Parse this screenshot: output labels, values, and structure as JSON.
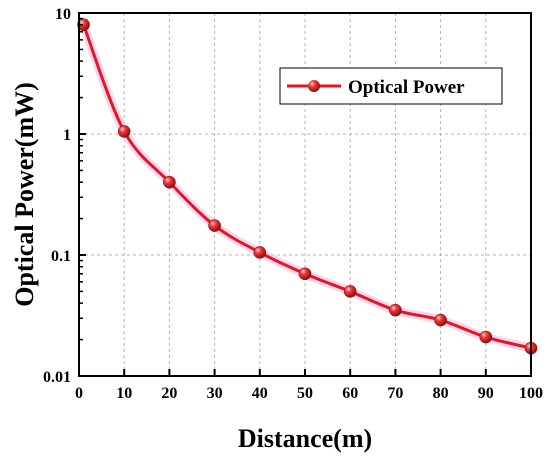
{
  "chart_data": {
    "type": "line",
    "xlabel": "Distance(m)",
    "ylabel": "Optical Power(mW)",
    "xlim": [
      0,
      100
    ],
    "ylim": [
      0.01,
      10
    ],
    "yscale": "log",
    "grid": true,
    "legend_position": "top-right",
    "x_ticks": [
      0,
      10,
      20,
      30,
      40,
      50,
      60,
      70,
      80,
      90,
      100
    ],
    "x_tick_labels": [
      "0",
      "10",
      "20",
      "30",
      "40",
      "50",
      "60",
      "70",
      "80",
      "90",
      "100"
    ],
    "y_ticks": [
      0.01,
      0.1,
      1,
      10
    ],
    "y_tick_labels": [
      "0.01",
      "0.1",
      "1",
      "10"
    ],
    "series": [
      {
        "name": "Optical Power",
        "color": "#e8161b",
        "marker_color": "#d8141a",
        "x": [
          1,
          10,
          20,
          30,
          40,
          50,
          60,
          70,
          80,
          90,
          100
        ],
        "y": [
          8.0,
          1.05,
          0.4,
          0.175,
          0.105,
          0.07,
          0.05,
          0.035,
          0.029,
          0.021,
          0.017
        ]
      }
    ]
  }
}
